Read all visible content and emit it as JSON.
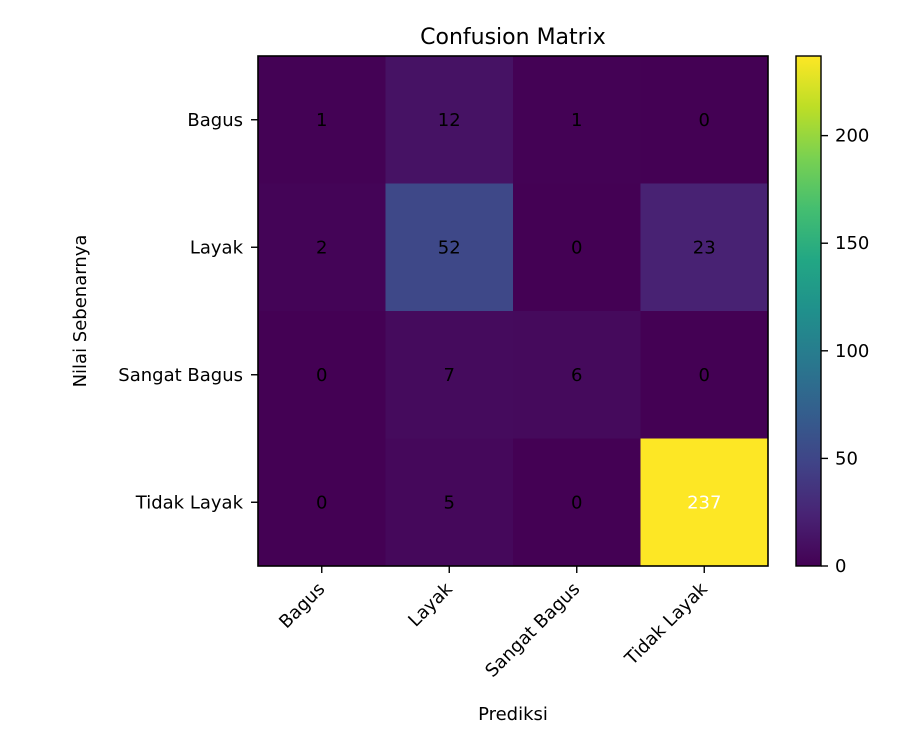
{
  "chart_data": {
    "type": "heatmap",
    "title": "Confusion Matrix",
    "xlabel": "Prediksi",
    "ylabel": "Nilai Sebenarnya",
    "x_categories": [
      "Bagus",
      "Layak",
      "Sangat Bagus",
      "Tidak Layak"
    ],
    "y_categories": [
      "Bagus",
      "Layak",
      "Sangat Bagus",
      "Tidak Layak"
    ],
    "values": [
      [
        1,
        12,
        1,
        0
      ],
      [
        2,
        52,
        0,
        23
      ],
      [
        0,
        7,
        6,
        0
      ],
      [
        0,
        5,
        0,
        237
      ]
    ],
    "colormap": "viridis",
    "color_range": [
      0,
      237
    ],
    "colorbar_ticks": [
      0,
      50,
      100,
      150,
      200
    ],
    "label_color_dark": "#000000",
    "label_color_light": "#ffffff",
    "grid": false
  }
}
